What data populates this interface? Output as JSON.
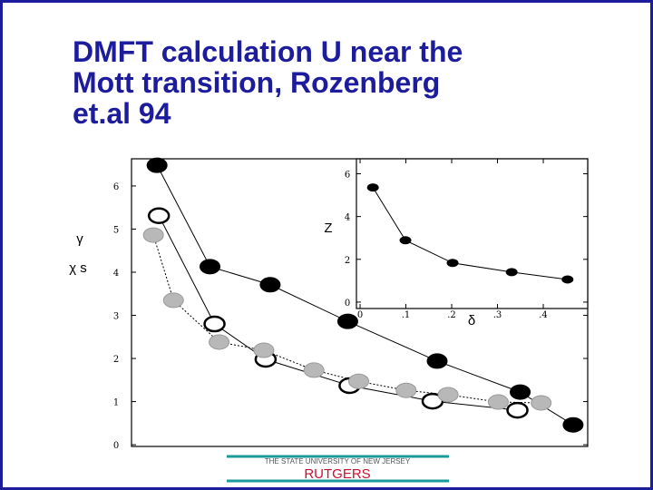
{
  "title": [
    "DMFT calculation U near the",
    "Mott transition, Rozenberg",
    "et.al 94"
  ],
  "chart_data": [
    {
      "type": "line",
      "ylabels": [
        "γ",
        "χ s"
      ],
      "xlim": [
        0,
        0.5
      ],
      "ylim": [
        -0.04,
        6.63
      ],
      "yticks": [
        0,
        1,
        2,
        3,
        4,
        5,
        6
      ],
      "series": [
        {
          "color": "#000000",
          "marker": "filled",
          "line": "solid",
          "x": [
            0.028,
            0.086,
            0.152,
            0.237,
            0.335,
            0.426,
            0.484
          ],
          "values": [
            6.48,
            4.13,
            3.71,
            2.86,
            1.94,
            1.22,
            0.46
          ]
        },
        {
          "color": "#000000",
          "marker": "open",
          "line": "solid",
          "x": [
            0.03,
            0.091,
            0.147,
            0.239,
            0.33,
            0.423
          ],
          "values": [
            5.31,
            2.8,
            1.98,
            1.37,
            1.01,
            0.8
          ]
        },
        {
          "color": "#b8b8b8",
          "marker": "filled",
          "line": "dotted",
          "x": [
            0.024,
            0.046,
            0.096,
            0.145,
            0.2,
            0.249,
            0.301,
            0.347,
            0.402,
            0.449
          ],
          "values": [
            4.86,
            3.35,
            2.38,
            2.19,
            1.73,
            1.47,
            1.26,
            1.16,
            0.99,
            0.97
          ]
        }
      ]
    },
    {
      "type": "line",
      "ylabels": [
        "Z"
      ],
      "xlabel": "δ",
      "xlim": [
        -0.008,
        0.497
      ],
      "ylim": [
        -0.3,
        6.7
      ],
      "yticks": [
        0,
        2,
        4,
        6
      ],
      "xticks": [
        0,
        {
          "value": 0.1,
          "label": ".1"
        },
        {
          "value": 0.2,
          "label": ".2"
        },
        {
          "value": 0.3,
          "label": ".3"
        },
        {
          "value": 0.4,
          "label": ".4"
        }
      ],
      "series": [
        {
          "color": "#000000",
          "marker": "filled",
          "line": "solid",
          "x": [
            0.028,
            0.099,
            0.202,
            0.331,
            0.453
          ],
          "values": [
            5.36,
            2.89,
            1.83,
            1.4,
            1.06
          ]
        }
      ]
    }
  ],
  "footer": {
    "university": "THE STATE UNIVERSITY OF NEW JERSEY",
    "name": "RUTGERS"
  }
}
